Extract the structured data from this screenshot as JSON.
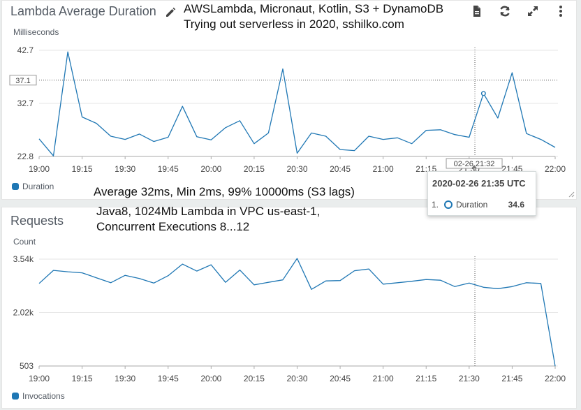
{
  "duration_widget": {
    "title": "Lambda Average Duration",
    "unit_label": "Milliseconds",
    "legend_label": "Duration",
    "hover_value_label": "37.1",
    "hover_time_label": "02-26 21:32"
  },
  "requests_widget": {
    "title": "Requests",
    "unit_label": "Count",
    "legend_label": "Invocations"
  },
  "annotations": {
    "title_line1": "AWSLambda, Micronaut, Kotlin, S3 + DynamoDB",
    "title_line2": "Trying out serverless in 2020, sshilko.com",
    "stats_line": "Average 32ms, Min 2ms, 99% 10000ms (S3 lags)",
    "env_line1": "Java8, 1024Mb Lambda in VPC us-east-1,",
    "env_line2": "Concurrent Executions 8...12"
  },
  "tooltip": {
    "time": "2020-02-26 21:35 UTC",
    "rank": "1.",
    "series": "Duration",
    "value": "34.6"
  },
  "icons": {
    "edit": "pencil-icon",
    "export": "document-icon",
    "refresh": "refresh-icon",
    "expand": "expand-icon",
    "menu": "kebab-menu-icon"
  },
  "colors": {
    "series": "#1f77b4"
  },
  "chart_data": [
    {
      "type": "line",
      "title": "Lambda Average Duration",
      "ylabel": "Milliseconds",
      "ylim": [
        22.8,
        42.7
      ],
      "yticks": [
        "42.7",
        "32.7",
        "22.8"
      ],
      "xticks": [
        "19:00",
        "19:15",
        "19:30",
        "19:45",
        "20:00",
        "20:15",
        "20:30",
        "20:45",
        "21:00",
        "21:15",
        "21:30",
        "21:45",
        "22:00"
      ],
      "grid": true,
      "legend": "bottom-left",
      "hover_time_minutes": 152,
      "highlight_point": {
        "x": 155,
        "y": 34.6
      },
      "series": [
        {
          "name": "Duration",
          "x": [
            0,
            5,
            10,
            15,
            20,
            25,
            30,
            35,
            40,
            45,
            50,
            55,
            60,
            65,
            70,
            75,
            80,
            85,
            90,
            95,
            100,
            105,
            110,
            115,
            120,
            125,
            130,
            135,
            140,
            145,
            150,
            155,
            160,
            165,
            170,
            175,
            180
          ],
          "y": [
            26.1,
            22.9,
            42.4,
            30.2,
            29.0,
            26.6,
            26.0,
            27.0,
            25.6,
            26.4,
            32.2,
            26.5,
            25.9,
            28.2,
            29.5,
            25.2,
            27.2,
            39.2,
            23.4,
            27.2,
            26.6,
            24.1,
            23.9,
            26.6,
            26.0,
            26.3,
            25.2,
            27.7,
            27.8,
            26.9,
            26.4,
            34.6,
            30.0,
            38.5,
            27.1,
            26.0,
            24.5
          ]
        }
      ]
    },
    {
      "type": "line",
      "title": "Requests",
      "ylabel": "Count",
      "ylim": [
        503,
        3540
      ],
      "yticks": [
        "3.54k",
        "2.02k",
        "503"
      ],
      "xticks": [
        "19:00",
        "19:15",
        "19:30",
        "19:45",
        "20:00",
        "20:15",
        "20:30",
        "20:45",
        "21:00",
        "21:15",
        "21:30",
        "21:45",
        "22:00"
      ],
      "grid": true,
      "legend": "bottom-left",
      "hover_time_minutes": 152,
      "series": [
        {
          "name": "Invocations",
          "x": [
            0,
            5,
            10,
            15,
            20,
            25,
            30,
            35,
            40,
            45,
            50,
            55,
            60,
            65,
            70,
            75,
            80,
            85,
            90,
            95,
            100,
            105,
            110,
            115,
            120,
            125,
            130,
            135,
            140,
            145,
            150,
            155,
            160,
            165,
            170,
            175,
            180
          ],
          "y": [
            2850,
            3220,
            3180,
            3150,
            3010,
            2870,
            3080,
            2990,
            2860,
            3070,
            3400,
            3200,
            3380,
            2880,
            3230,
            2810,
            2880,
            2950,
            3560,
            2680,
            2920,
            2930,
            3210,
            3260,
            2830,
            2870,
            2910,
            2960,
            2940,
            2760,
            2860,
            2740,
            2700,
            2760,
            2870,
            2850,
            500
          ]
        }
      ]
    }
  ]
}
